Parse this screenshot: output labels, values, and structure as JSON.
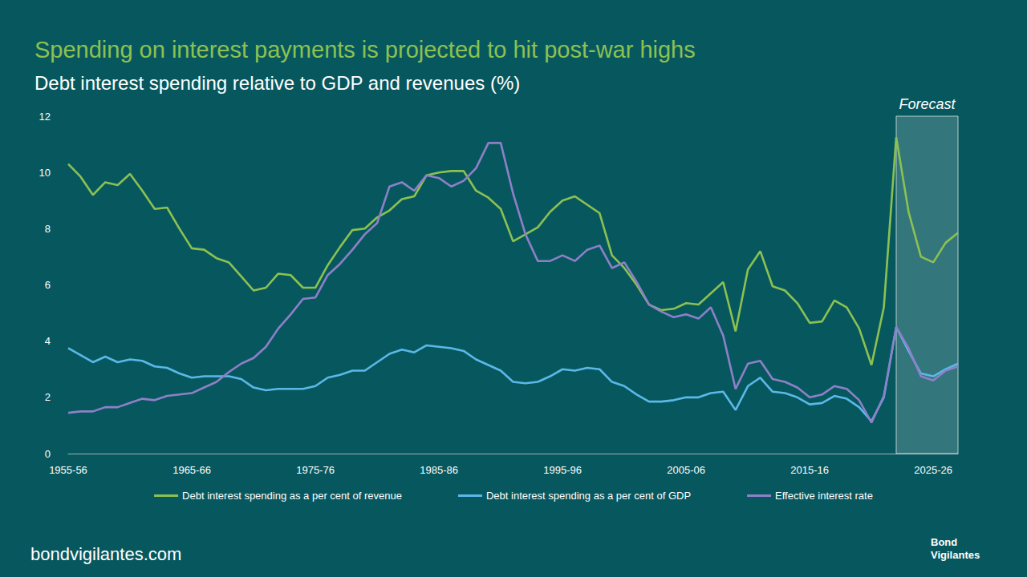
{
  "chart_data": {
    "type": "line",
    "title": "Spending on interest payments is projected to hit post-war highs",
    "subtitle": "Debt interest spending relative to GDP and revenues (%)",
    "categories": [
      "1955-56",
      null,
      null,
      null,
      null,
      null,
      null,
      null,
      null,
      null,
      "1965-66",
      null,
      null,
      null,
      null,
      null,
      null,
      null,
      null,
      null,
      "1975-76",
      null,
      null,
      null,
      null,
      null,
      null,
      null,
      null,
      null,
      "1985-86",
      null,
      null,
      null,
      null,
      null,
      null,
      null,
      null,
      null,
      "1995-96",
      null,
      null,
      null,
      null,
      null,
      null,
      null,
      null,
      null,
      "2005-06",
      null,
      null,
      null,
      null,
      null,
      null,
      null,
      null,
      null,
      "2015-16",
      null,
      null,
      null,
      null,
      null,
      null,
      null,
      null,
      null,
      "2025-26",
      null,
      null
    ],
    "series": [
      {
        "name": "Debt interest spending as a per cent of revenue",
        "color": "#8cc152",
        "values": [
          10.3,
          9.85,
          9.2,
          9.65,
          9.55,
          9.95,
          9.35,
          8.7,
          8.75,
          8.0,
          7.3,
          7.25,
          6.95,
          6.8,
          6.3,
          5.8,
          5.9,
          6.4,
          6.35,
          5.9,
          5.9,
          6.7,
          7.35,
          7.95,
          8.0,
          8.4,
          8.65,
          9.05,
          9.15,
          9.9,
          10.0,
          10.05,
          10.05,
          9.35,
          9.1,
          8.7,
          7.55,
          7.8,
          8.05,
          8.6,
          9.0,
          9.15,
          8.85,
          8.55,
          7.05,
          6.6,
          6.0,
          5.3,
          5.1,
          5.15,
          5.35,
          5.3,
          5.7,
          6.1,
          4.35,
          6.55,
          7.2,
          5.95,
          5.8,
          5.35,
          4.65,
          4.7,
          5.45,
          5.2,
          4.45,
          3.15,
          5.2,
          11.25,
          8.6,
          7.0,
          6.8,
          7.5,
          7.85
        ]
      },
      {
        "name": "Debt interest spending as a per cent of GDP",
        "color": "#5bb8e8",
        "values": [
          3.75,
          3.5,
          3.25,
          3.45,
          3.25,
          3.35,
          3.3,
          3.1,
          3.05,
          2.85,
          2.7,
          2.75,
          2.75,
          2.75,
          2.65,
          2.35,
          2.25,
          2.3,
          2.3,
          2.3,
          2.4,
          2.7,
          2.8,
          2.95,
          2.95,
          3.25,
          3.55,
          3.7,
          3.6,
          3.85,
          3.8,
          3.75,
          3.65,
          3.35,
          3.15,
          2.95,
          2.55,
          2.5,
          2.55,
          2.75,
          3.0,
          2.95,
          3.05,
          3.0,
          2.55,
          2.4,
          2.1,
          1.85,
          1.85,
          1.9,
          2.0,
          2.0,
          2.15,
          2.2,
          1.55,
          2.4,
          2.7,
          2.2,
          2.15,
          2.0,
          1.75,
          1.8,
          2.05,
          1.95,
          1.65,
          1.15,
          2.0,
          4.5,
          3.65,
          2.85,
          2.75,
          3.0,
          3.2
        ]
      },
      {
        "name": "Effective interest rate",
        "color": "#8e80c8",
        "values": [
          1.45,
          1.5,
          1.5,
          1.65,
          1.65,
          1.8,
          1.95,
          1.9,
          2.05,
          2.1,
          2.15,
          2.35,
          2.55,
          2.9,
          3.2,
          3.4,
          3.8,
          4.45,
          4.95,
          5.5,
          5.55,
          6.35,
          6.75,
          7.25,
          7.8,
          8.2,
          9.5,
          9.65,
          9.35,
          9.9,
          9.8,
          9.5,
          9.7,
          10.15,
          11.05,
          11.05,
          9.25,
          7.8,
          6.85,
          6.85,
          7.05,
          6.85,
          7.25,
          7.4,
          6.6,
          6.8,
          6.1,
          5.3,
          5.05,
          4.85,
          4.95,
          4.8,
          5.2,
          4.2,
          2.3,
          3.2,
          3.3,
          2.65,
          2.55,
          2.35,
          2.0,
          2.1,
          2.4,
          2.3,
          1.9,
          1.1,
          2.05,
          4.5,
          3.75,
          2.75,
          2.6,
          2.95,
          3.1
        ]
      }
    ],
    "ylim": [
      0,
      12
    ],
    "yticks": [
      0,
      2,
      4,
      6,
      8,
      10,
      12
    ],
    "grid": false,
    "legend": "bottom",
    "annotations": [
      {
        "text": "Forecast",
        "span": [
          67,
          72
        ]
      }
    ],
    "source": "bondvigilantes.com",
    "logo": "Bond Vigilantes"
  }
}
